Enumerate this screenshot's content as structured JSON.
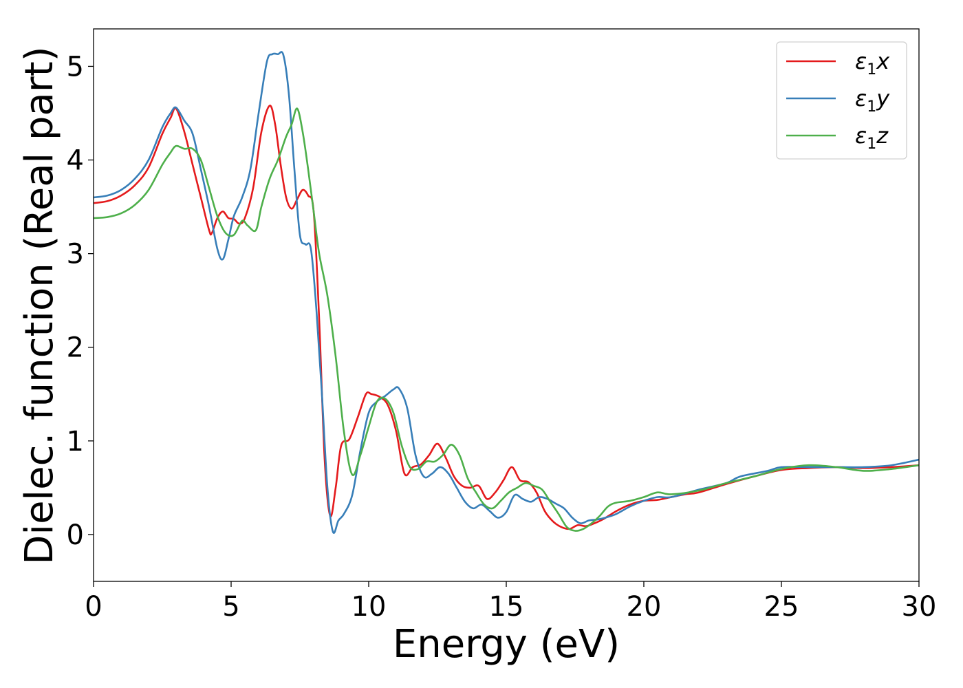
{
  "chart_data": {
    "type": "line",
    "title": "",
    "xlabel": "Energy (eV)",
    "ylabel": "Dielec. function (Real part)",
    "xlim": [
      0,
      30
    ],
    "ylim": [
      -0.5,
      5.4
    ],
    "xticks": [
      0,
      5,
      10,
      15,
      20,
      25,
      30
    ],
    "yticks": [
      0,
      1,
      2,
      3,
      4,
      5
    ],
    "grid": false,
    "legend_position": "top-right",
    "series": [
      {
        "name": "ε₁x",
        "legend_base": "ε",
        "legend_sub": "1",
        "legend_var": "x",
        "color": "#e41a1c",
        "x": [
          0,
          0.5,
          1,
          1.5,
          2,
          2.5,
          2.8,
          3.0,
          3.3,
          3.6,
          3.9,
          4.2,
          4.3,
          4.5,
          4.7,
          4.9,
          5.1,
          5.3,
          5.5,
          5.8,
          6.1,
          6.4,
          6.6,
          6.8,
          7.0,
          7.2,
          7.4,
          7.6,
          7.8,
          8.0,
          8.2,
          8.4,
          8.6,
          8.8,
          9.0,
          9.3,
          9.6,
          9.9,
          10.1,
          10.4,
          10.7,
          11.0,
          11.3,
          11.6,
          11.9,
          12.2,
          12.5,
          12.8,
          13.1,
          13.4,
          13.7,
          14.0,
          14.3,
          14.6,
          14.9,
          15.2,
          15.5,
          15.8,
          16.1,
          16.4,
          16.7,
          17.0,
          17.3,
          17.6,
          17.9,
          18.2,
          18.5,
          19.0,
          19.5,
          20.0,
          20.5,
          21.0,
          21.5,
          22.0,
          23.0,
          24.0,
          25.0,
          26.0,
          27.0,
          28.0,
          29.0,
          30.0
        ],
        "y": [
          3.54,
          3.56,
          3.62,
          3.73,
          3.92,
          4.28,
          4.45,
          4.55,
          4.3,
          3.95,
          3.6,
          3.25,
          3.22,
          3.38,
          3.45,
          3.38,
          3.37,
          3.32,
          3.38,
          3.7,
          4.3,
          4.58,
          4.38,
          3.95,
          3.6,
          3.48,
          3.58,
          3.68,
          3.62,
          3.45,
          2.3,
          0.8,
          0.2,
          0.5,
          0.95,
          1.02,
          1.25,
          1.5,
          1.5,
          1.47,
          1.38,
          1.1,
          0.65,
          0.72,
          0.75,
          0.85,
          0.97,
          0.82,
          0.62,
          0.52,
          0.5,
          0.52,
          0.38,
          0.45,
          0.58,
          0.72,
          0.58,
          0.56,
          0.45,
          0.25,
          0.14,
          0.08,
          0.06,
          0.1,
          0.09,
          0.12,
          0.16,
          0.25,
          0.32,
          0.36,
          0.37,
          0.4,
          0.43,
          0.45,
          0.54,
          0.62,
          0.69,
          0.71,
          0.72,
          0.71,
          0.72,
          0.74
        ]
      },
      {
        "name": "ε₁y",
        "legend_base": "ε",
        "legend_sub": "1",
        "legend_var": "y",
        "color": "#377eb8",
        "x": [
          0,
          0.5,
          1,
          1.5,
          2,
          2.5,
          2.8,
          3.0,
          3.3,
          3.6,
          3.9,
          4.2,
          4.5,
          4.7,
          4.9,
          5.1,
          5.4,
          5.7,
          6.0,
          6.3,
          6.5,
          6.7,
          6.9,
          7.1,
          7.3,
          7.5,
          7.7,
          7.9,
          8.1,
          8.3,
          8.5,
          8.7,
          8.9,
          9.1,
          9.4,
          9.7,
          10.0,
          10.3,
          10.6,
          10.9,
          11.1,
          11.4,
          11.7,
          12.0,
          12.3,
          12.6,
          12.9,
          13.2,
          13.5,
          13.8,
          14.1,
          14.4,
          14.7,
          15.0,
          15.3,
          15.6,
          15.9,
          16.2,
          16.5,
          16.8,
          17.1,
          17.4,
          17.7,
          18.0,
          18.3,
          18.6,
          19.0,
          19.5,
          20.0,
          20.5,
          21.0,
          22.0,
          23.0,
          23.5,
          24.5,
          25.0,
          26.0,
          27.0,
          28.0,
          29.0,
          30.0
        ],
        "y": [
          3.6,
          3.62,
          3.68,
          3.8,
          4.0,
          4.35,
          4.5,
          4.56,
          4.42,
          4.28,
          3.9,
          3.5,
          3.05,
          2.94,
          3.15,
          3.4,
          3.6,
          3.9,
          4.5,
          5.05,
          5.13,
          5.13,
          5.12,
          4.7,
          3.9,
          3.2,
          3.1,
          3.05,
          2.4,
          1.5,
          0.5,
          0.03,
          0.15,
          0.22,
          0.42,
          0.9,
          1.3,
          1.42,
          1.48,
          1.55,
          1.56,
          1.35,
          0.85,
          0.62,
          0.65,
          0.72,
          0.65,
          0.5,
          0.35,
          0.28,
          0.32,
          0.25,
          0.18,
          0.24,
          0.42,
          0.38,
          0.35,
          0.4,
          0.38,
          0.33,
          0.28,
          0.18,
          0.12,
          0.15,
          0.16,
          0.18,
          0.22,
          0.3,
          0.36,
          0.4,
          0.4,
          0.48,
          0.55,
          0.62,
          0.68,
          0.72,
          0.72,
          0.72,
          0.72,
          0.74,
          0.8
        ]
      },
      {
        "name": "ε₁z",
        "legend_base": "ε",
        "legend_sub": "1",
        "legend_var": "z",
        "color": "#4daf4a",
        "x": [
          0,
          0.5,
          1,
          1.5,
          2,
          2.5,
          2.8,
          3.0,
          3.3,
          3.6,
          3.9,
          4.2,
          4.5,
          4.8,
          5.1,
          5.4,
          5.6,
          5.9,
          6.1,
          6.4,
          6.7,
          7.0,
          7.2,
          7.4,
          7.6,
          7.8,
          8.0,
          8.2,
          8.5,
          8.8,
          9.1,
          9.4,
          9.7,
          10.0,
          10.3,
          10.6,
          10.9,
          11.2,
          11.5,
          11.8,
          12.1,
          12.4,
          12.7,
          13.0,
          13.3,
          13.6,
          13.9,
          14.2,
          14.5,
          14.8,
          15.1,
          15.4,
          15.7,
          16.0,
          16.3,
          16.6,
          16.9,
          17.2,
          17.5,
          17.8,
          18.1,
          18.4,
          18.7,
          19.0,
          19.5,
          20.0,
          20.5,
          21.0,
          22.0,
          23.0,
          24.0,
          25.0,
          26.0,
          27.0,
          28.0,
          29.0,
          30.0
        ],
        "y": [
          3.38,
          3.39,
          3.43,
          3.52,
          3.68,
          3.95,
          4.08,
          4.15,
          4.12,
          4.12,
          4.0,
          3.7,
          3.4,
          3.22,
          3.2,
          3.35,
          3.3,
          3.25,
          3.5,
          3.8,
          4.0,
          4.25,
          4.38,
          4.55,
          4.3,
          3.9,
          3.45,
          3.0,
          2.55,
          1.9,
          1.1,
          0.64,
          0.85,
          1.15,
          1.42,
          1.45,
          1.3,
          0.95,
          0.72,
          0.7,
          0.78,
          0.78,
          0.85,
          0.96,
          0.85,
          0.6,
          0.45,
          0.32,
          0.28,
          0.36,
          0.45,
          0.5,
          0.55,
          0.52,
          0.48,
          0.35,
          0.22,
          0.08,
          0.04,
          0.06,
          0.12,
          0.2,
          0.3,
          0.34,
          0.36,
          0.4,
          0.45,
          0.43,
          0.47,
          0.55,
          0.62,
          0.7,
          0.74,
          0.72,
          0.68,
          0.7,
          0.74
        ]
      }
    ]
  }
}
